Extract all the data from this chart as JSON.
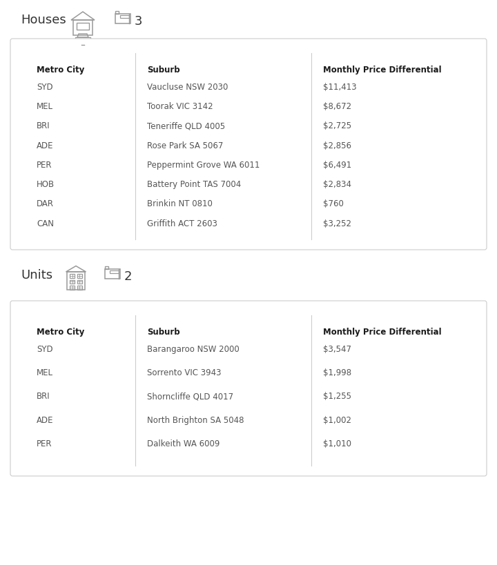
{
  "houses": {
    "label": "Houses",
    "bedrooms": "3",
    "headers": [
      "Metro City",
      "Suburb",
      "Monthly Price Differential"
    ],
    "rows": [
      [
        "SYD",
        "Vaucluse NSW 2030",
        "$11,413"
      ],
      [
        "MEL",
        "Toorak VIC 3142",
        "$8,672"
      ],
      [
        "BRI",
        "Teneriffe QLD 4005",
        "$2,725"
      ],
      [
        "ADE",
        "Rose Park SA 5067",
        "$2,856"
      ],
      [
        "PER",
        "Peppermint Grove WA 6011",
        "$6,491"
      ],
      [
        "HOB",
        "Battery Point TAS 7004",
        "$2,834"
      ],
      [
        "DAR",
        "Brinkin NT 0810",
        "$760"
      ],
      [
        "CAN",
        "Griffith ACT 2603",
        "$3,252"
      ]
    ]
  },
  "units": {
    "label": "Units",
    "bedrooms": "2",
    "headers": [
      "Metro City",
      "Suburb",
      "Monthly Price Differential"
    ],
    "rows": [
      [
        "SYD",
        "Barangaroo NSW 2000",
        "$3,547"
      ],
      [
        "MEL",
        "Sorrento VIC 3943",
        "$1,998"
      ],
      [
        "BRI",
        "Shorncliffe QLD 4017",
        "$1,255"
      ],
      [
        "ADE",
        "North Brighton SA 5048",
        "$1,002"
      ],
      [
        "PER",
        "Dalkeith WA 6009",
        "$1,010"
      ]
    ]
  },
  "bg_color": "#ffffff",
  "box_bg": "#ffffff",
  "box_edge": "#cccccc",
  "header_color": "#1a1a1a",
  "row_color": "#555555",
  "divider_color": "#cccccc",
  "label_fontsize": 13,
  "header_fontsize": 8.5,
  "row_fontsize": 8.5,
  "icon_color": "#999999"
}
